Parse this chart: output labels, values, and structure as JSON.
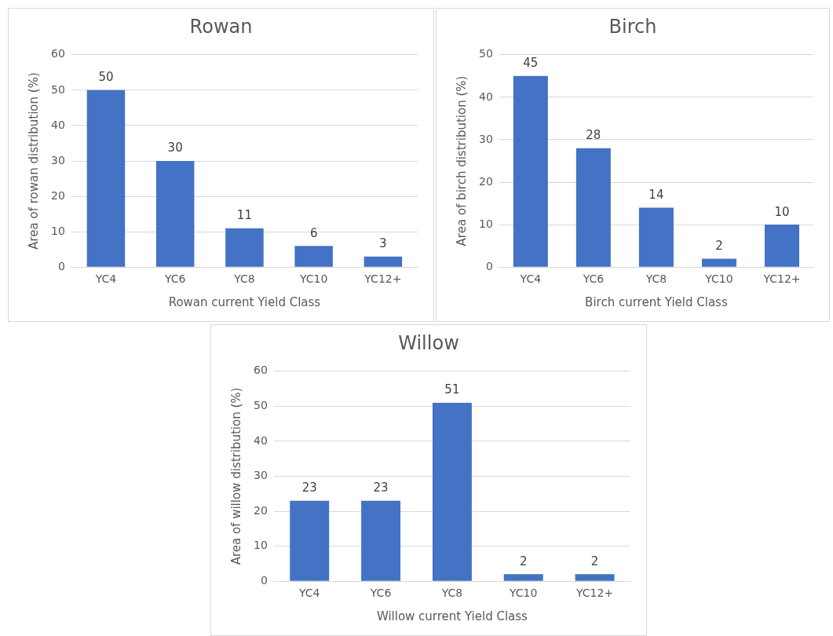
{
  "chart_data": [
    {
      "type": "bar",
      "title": "Rowan",
      "xlabel": "Rowan current Yield Class",
      "ylabel": "Area of rowan distribution (%)",
      "categories": [
        "YC4",
        "YC6",
        "YC8",
        "YC10",
        "YC12+"
      ],
      "values": [
        50,
        30,
        11,
        6,
        3
      ],
      "color": "#4472c4",
      "ylim": [
        0,
        60
      ],
      "yticks": [
        0,
        10,
        20,
        30,
        40,
        50,
        60
      ],
      "grid": "y",
      "data_labels": true
    },
    {
      "type": "bar",
      "title": "Birch",
      "xlabel": "Birch current Yield Class",
      "ylabel": "Area of birch distribution (%)",
      "categories": [
        "YC4",
        "YC6",
        "YC8",
        "YC10",
        "YC12+"
      ],
      "values": [
        45,
        28,
        14,
        2,
        10
      ],
      "color": "#4472c4",
      "ylim": [
        0,
        50
      ],
      "yticks": [
        0,
        10,
        20,
        30,
        40,
        50
      ],
      "grid": "y",
      "data_labels": true
    },
    {
      "type": "bar",
      "title": "Willow",
      "xlabel": "Willow current Yield Class",
      "ylabel": "Area of willow distribution (%)",
      "categories": [
        "YC4",
        "YC6",
        "YC8",
        "YC10",
        "YC12+"
      ],
      "values": [
        23,
        23,
        51,
        2,
        2
      ],
      "color": "#4472c4",
      "ylim": [
        0,
        60
      ],
      "yticks": [
        0,
        10,
        20,
        30,
        40,
        50,
        60
      ],
      "grid": "y",
      "data_labels": true
    }
  ]
}
